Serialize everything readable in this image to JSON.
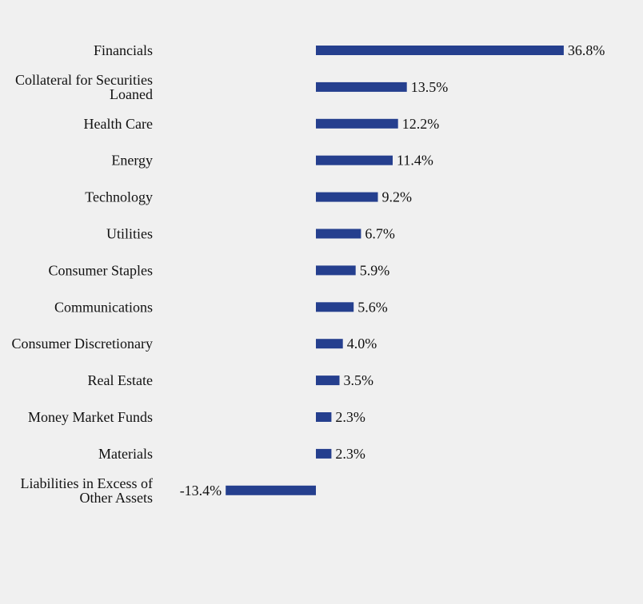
{
  "chart_data": {
    "type": "bar",
    "orientation": "horizontal",
    "title": "",
    "xlabel": "",
    "ylabel": "",
    "categories": [
      [
        "Financials"
      ],
      [
        "Collateral for Securities",
        "Loaned"
      ],
      [
        "Health Care"
      ],
      [
        "Energy"
      ],
      [
        "Technology"
      ],
      [
        "Utilities"
      ],
      [
        "Consumer Staples"
      ],
      [
        "Communications"
      ],
      [
        "Consumer Discretionary"
      ],
      [
        "Real Estate"
      ],
      [
        "Money Market Funds"
      ],
      [
        "Materials"
      ],
      [
        "Liabilities in Excess of",
        "Other Assets"
      ]
    ],
    "values": [
      36.8,
      13.5,
      12.2,
      11.4,
      9.2,
      6.7,
      5.9,
      5.6,
      4.0,
      3.5,
      2.3,
      2.3,
      -13.4
    ],
    "value_labels": [
      "36.8%",
      "13.5%",
      "12.2%",
      "11.4%",
      "9.2%",
      "6.7%",
      "5.9%",
      "5.6%",
      "4.0%",
      "3.5%",
      "2.3%",
      "2.3%",
      "-13.4%"
    ],
    "bar_color": "#253f8e",
    "grid": false,
    "legend": "none"
  }
}
